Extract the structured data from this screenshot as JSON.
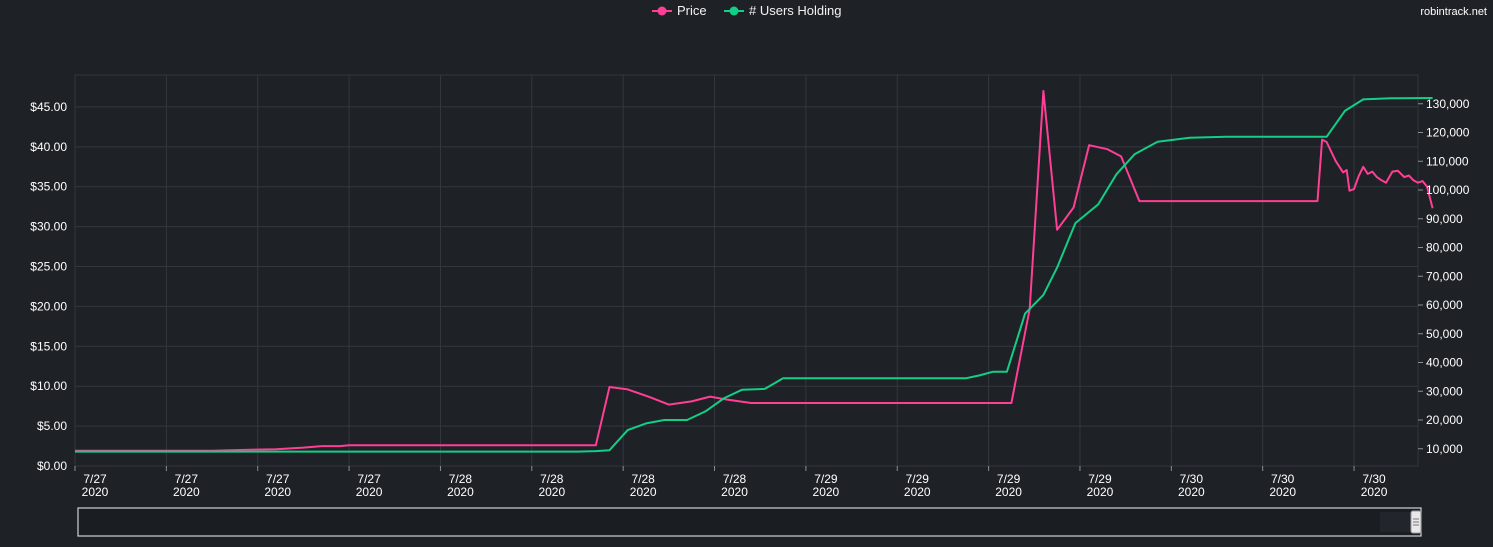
{
  "watermark": "robintrack.net",
  "colors": {
    "background": "#1e2126",
    "grid": "#33383f",
    "price": "#ff3e95",
    "users": "#13cf86",
    "text": "#ffffff"
  },
  "legend": {
    "position": "top-center",
    "items": [
      {
        "name": "Price",
        "color": "#ff3e95"
      },
      {
        "name": "# Users Holding",
        "color": "#13cf86"
      }
    ]
  },
  "chart_data": {
    "type": "line",
    "grid": true,
    "x_tick_labels": [
      {
        "line1": "7/27",
        "line2": "2020"
      },
      {
        "line1": "7/27",
        "line2": "2020"
      },
      {
        "line1": "7/27",
        "line2": "2020"
      },
      {
        "line1": "7/27",
        "line2": "2020"
      },
      {
        "line1": "7/28",
        "line2": "2020"
      },
      {
        "line1": "7/28",
        "line2": "2020"
      },
      {
        "line1": "7/28",
        "line2": "2020"
      },
      {
        "line1": "7/28",
        "line2": "2020"
      },
      {
        "line1": "7/29",
        "line2": "2020"
      },
      {
        "line1": "7/29",
        "line2": "2020"
      },
      {
        "line1": "7/29",
        "line2": "2020"
      },
      {
        "line1": "7/29",
        "line2": "2020"
      },
      {
        "line1": "7/30",
        "line2": "2020"
      },
      {
        "line1": "7/30",
        "line2": "2020"
      },
      {
        "line1": "7/30",
        "line2": "2020"
      }
    ],
    "x_range": [
      0,
      14.7
    ],
    "y_left": {
      "range": [
        0,
        49
      ],
      "ticks": [
        0,
        5,
        10,
        15,
        20,
        25,
        30,
        35,
        40,
        45
      ],
      "tick_labels": [
        "$0.00",
        "$5.00",
        "$10.00",
        "$15.00",
        "$20.00",
        "$25.00",
        "$30.00",
        "$35.00",
        "$40.00",
        "$45.00"
      ]
    },
    "y_right": {
      "range": [
        4000,
        140000
      ],
      "ticks": [
        10000,
        20000,
        30000,
        40000,
        50000,
        60000,
        70000,
        80000,
        90000,
        100000,
        110000,
        120000,
        130000
      ],
      "tick_labels": [
        "10,000",
        "20,000",
        "30,000",
        "40,000",
        "50,000",
        "60,000",
        "70,000",
        "80,000",
        "90,000",
        "100,000",
        "110,000",
        "120,000",
        "130,000"
      ]
    },
    "series": [
      {
        "name": "Price",
        "axis": "left",
        "color": "#ff3e95",
        "points": [
          [
            0,
            1.9
          ],
          [
            1.5,
            1.9
          ],
          [
            1.8,
            2.0
          ],
          [
            2.2,
            2.1
          ],
          [
            2.5,
            2.3
          ],
          [
            2.7,
            2.5
          ],
          [
            2.9,
            2.5
          ],
          [
            3.0,
            2.6
          ],
          [
            4.0,
            2.6
          ],
          [
            5.0,
            2.6
          ],
          [
            5.2,
            2.6
          ],
          [
            5.7,
            2.6
          ],
          [
            5.85,
            9.9
          ],
          [
            6.05,
            9.6
          ],
          [
            6.3,
            8.6
          ],
          [
            6.5,
            7.7
          ],
          [
            6.75,
            8.1
          ],
          [
            6.95,
            8.7
          ],
          [
            7.15,
            8.3
          ],
          [
            7.4,
            7.9
          ],
          [
            8.0,
            7.9
          ],
          [
            9.0,
            7.9
          ],
          [
            10.0,
            7.9
          ],
          [
            10.25,
            7.9
          ],
          [
            10.45,
            19.7
          ],
          [
            10.6,
            47.0
          ],
          [
            10.75,
            29.6
          ],
          [
            10.93,
            32.4
          ],
          [
            11.1,
            40.2
          ],
          [
            11.3,
            39.7
          ],
          [
            11.45,
            38.8
          ],
          [
            11.65,
            33.2
          ],
          [
            12.0,
            33.2
          ],
          [
            13.0,
            33.2
          ],
          [
            13.6,
            33.2
          ],
          [
            13.65,
            40.9
          ],
          [
            13.7,
            40.6
          ],
          [
            13.8,
            38.2
          ],
          [
            13.88,
            36.8
          ],
          [
            13.92,
            37.1
          ],
          [
            13.95,
            34.5
          ],
          [
            14.0,
            34.7
          ],
          [
            14.05,
            36.3
          ],
          [
            14.1,
            37.5
          ],
          [
            14.15,
            36.6
          ],
          [
            14.2,
            36.9
          ],
          [
            14.25,
            36.2
          ],
          [
            14.3,
            35.8
          ],
          [
            14.35,
            35.5
          ],
          [
            14.42,
            36.9
          ],
          [
            14.48,
            37.0
          ],
          [
            14.55,
            36.2
          ],
          [
            14.6,
            36.4
          ],
          [
            14.65,
            35.8
          ],
          [
            14.7,
            35.5
          ],
          [
            14.75,
            35.7
          ],
          [
            14.8,
            35.0
          ],
          [
            14.86,
            32.3
          ]
        ]
      },
      {
        "name": "# Users Holding",
        "axis": "right",
        "color": "#13cf86",
        "points": [
          [
            0,
            9000
          ],
          [
            1.0,
            9000
          ],
          [
            2.0,
            9000
          ],
          [
            3.0,
            9000
          ],
          [
            4.0,
            9000
          ],
          [
            5.0,
            9000
          ],
          [
            5.5,
            9000
          ],
          [
            5.7,
            9200
          ],
          [
            5.85,
            9500
          ],
          [
            6.05,
            16500
          ],
          [
            6.25,
            18800
          ],
          [
            6.45,
            20000
          ],
          [
            6.7,
            20000
          ],
          [
            6.9,
            23000
          ],
          [
            7.1,
            27500
          ],
          [
            7.3,
            30500
          ],
          [
            7.55,
            30800
          ],
          [
            7.75,
            34500
          ],
          [
            8.0,
            34500
          ],
          [
            9.0,
            34500
          ],
          [
            9.5,
            34500
          ],
          [
            9.75,
            34500
          ],
          [
            9.9,
            35500
          ],
          [
            10.05,
            36800
          ],
          [
            10.2,
            36800
          ],
          [
            10.4,
            57000
          ],
          [
            10.6,
            63500
          ],
          [
            10.75,
            73000
          ],
          [
            10.95,
            88500
          ],
          [
            11.2,
            95000
          ],
          [
            11.4,
            105500
          ],
          [
            11.6,
            112500
          ],
          [
            11.85,
            116800
          ],
          [
            12.2,
            118200
          ],
          [
            12.6,
            118500
          ],
          [
            13.0,
            118500
          ],
          [
            13.5,
            118500
          ],
          [
            13.7,
            118500
          ],
          [
            13.9,
            127500
          ],
          [
            14.1,
            131500
          ],
          [
            14.4,
            131900
          ],
          [
            14.86,
            132000
          ]
        ]
      }
    ]
  },
  "navigator": {
    "label": "range-navigator"
  }
}
